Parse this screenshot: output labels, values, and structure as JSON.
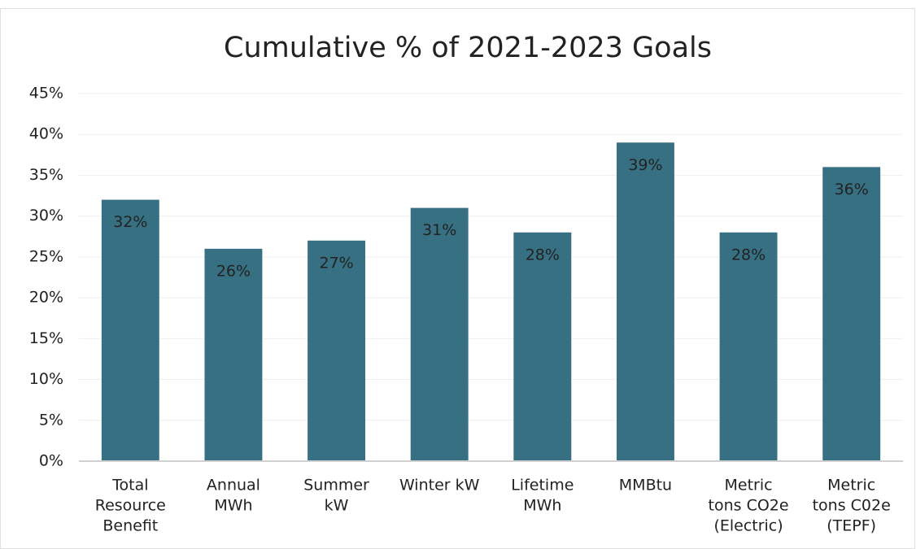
{
  "chart_data": {
    "type": "bar",
    "title": "Cumulative % of 2021-2023 Goals",
    "categories": [
      [
        "Total",
        "Resource",
        "Benefit"
      ],
      [
        "Annual",
        "MWh"
      ],
      [
        "Summer",
        "kW"
      ],
      [
        "Winter kW"
      ],
      [
        "Lifetime",
        "MWh"
      ],
      [
        "MMBtu"
      ],
      [
        "Metric",
        "tons CO2e",
        "(Electric)"
      ],
      [
        "Metric",
        "tons C02e",
        "(TEPF)"
      ]
    ],
    "values": [
      32,
      26,
      27,
      31,
      28,
      39,
      28,
      36
    ],
    "value_labels": [
      "32%",
      "26%",
      "27%",
      "31%",
      "28%",
      "39%",
      "28%",
      "36%"
    ],
    "color": "#367082",
    "ylim": [
      0,
      45
    ],
    "yticks": [
      {
        "value": 0,
        "label": "0%"
      },
      {
        "value": 5,
        "label": "5%"
      },
      {
        "value": 10,
        "label": "10%"
      },
      {
        "value": 15,
        "label": "15%"
      },
      {
        "value": 20,
        "label": "20%"
      },
      {
        "value": 25,
        "label": "25%"
      },
      {
        "value": 30,
        "label": "30%"
      },
      {
        "value": 35,
        "label": "35%"
      },
      {
        "value": 40,
        "label": "40%"
      },
      {
        "value": 45,
        "label": "45%"
      }
    ],
    "grid": true
  }
}
